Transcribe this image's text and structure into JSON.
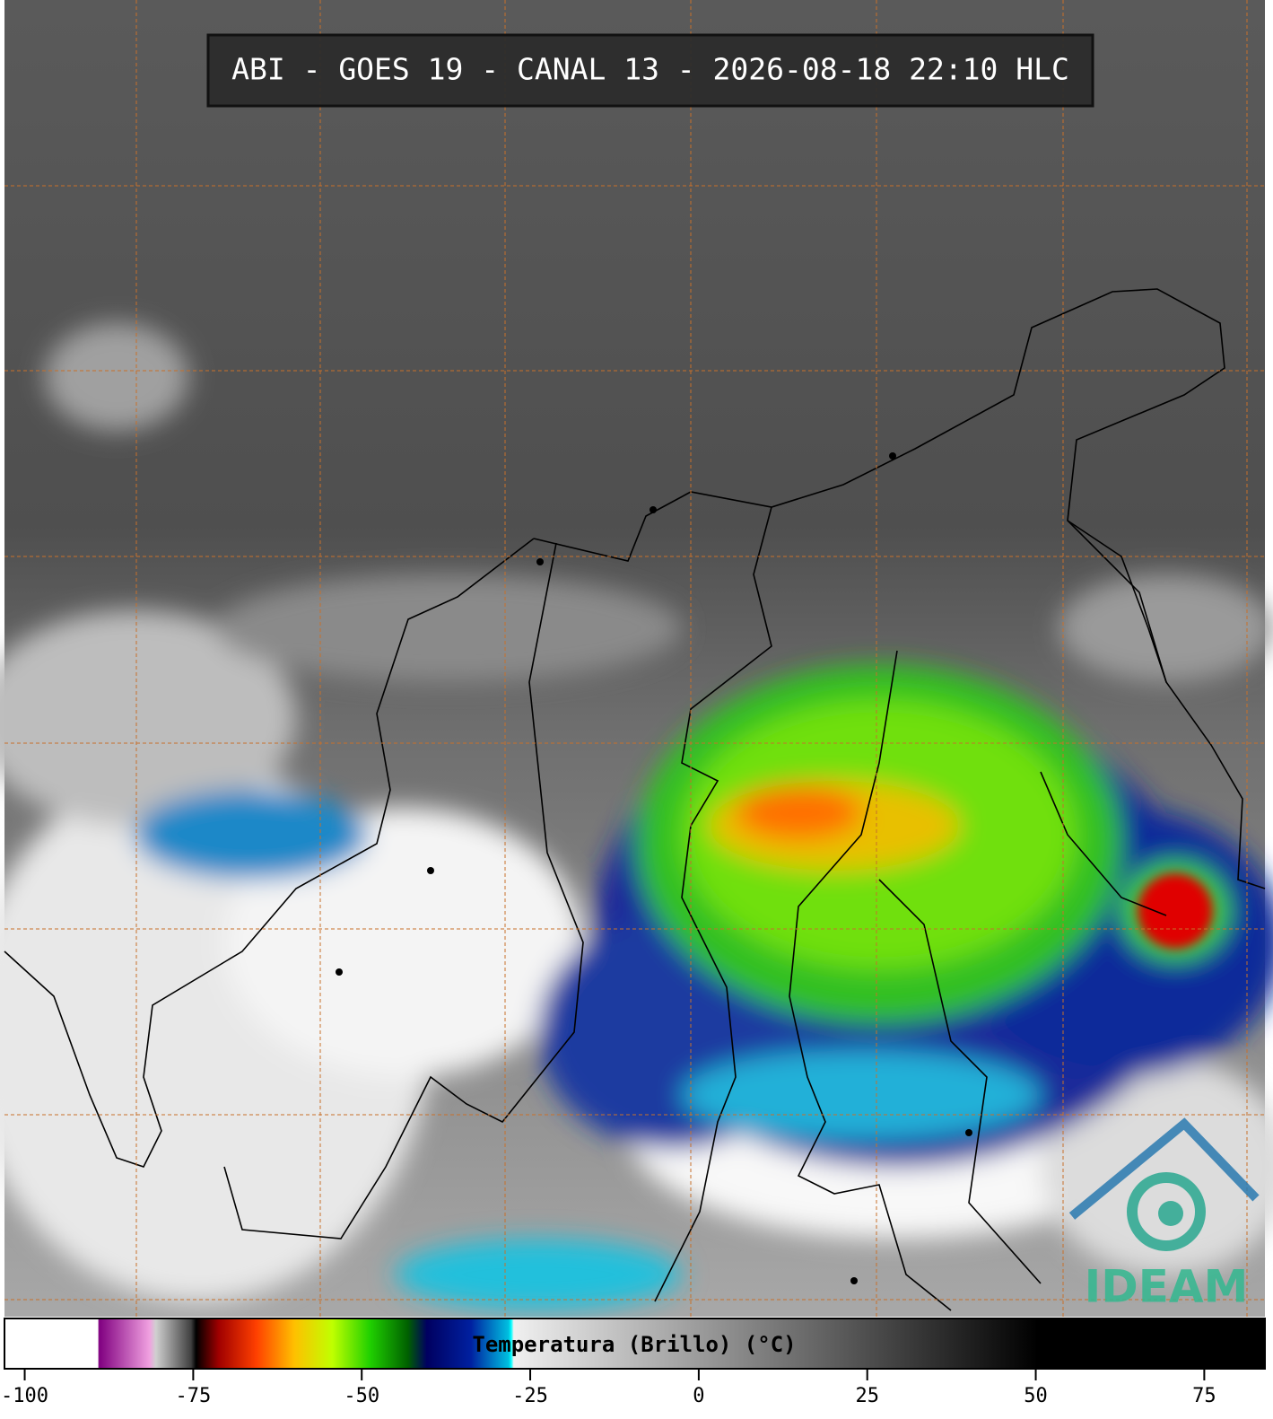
{
  "title": "ABI - GOES 19 - CANAL 13 - 2026-08-18 22:10 HLC",
  "logo": "IDEAM",
  "colorbar": {
    "label": "Temperatura (Brillo) (°C)",
    "xlim": [
      -103,
      84
    ],
    "xticks": [
      -100,
      -75,
      -50,
      -25,
      0,
      25,
      50,
      75
    ]
  }
}
